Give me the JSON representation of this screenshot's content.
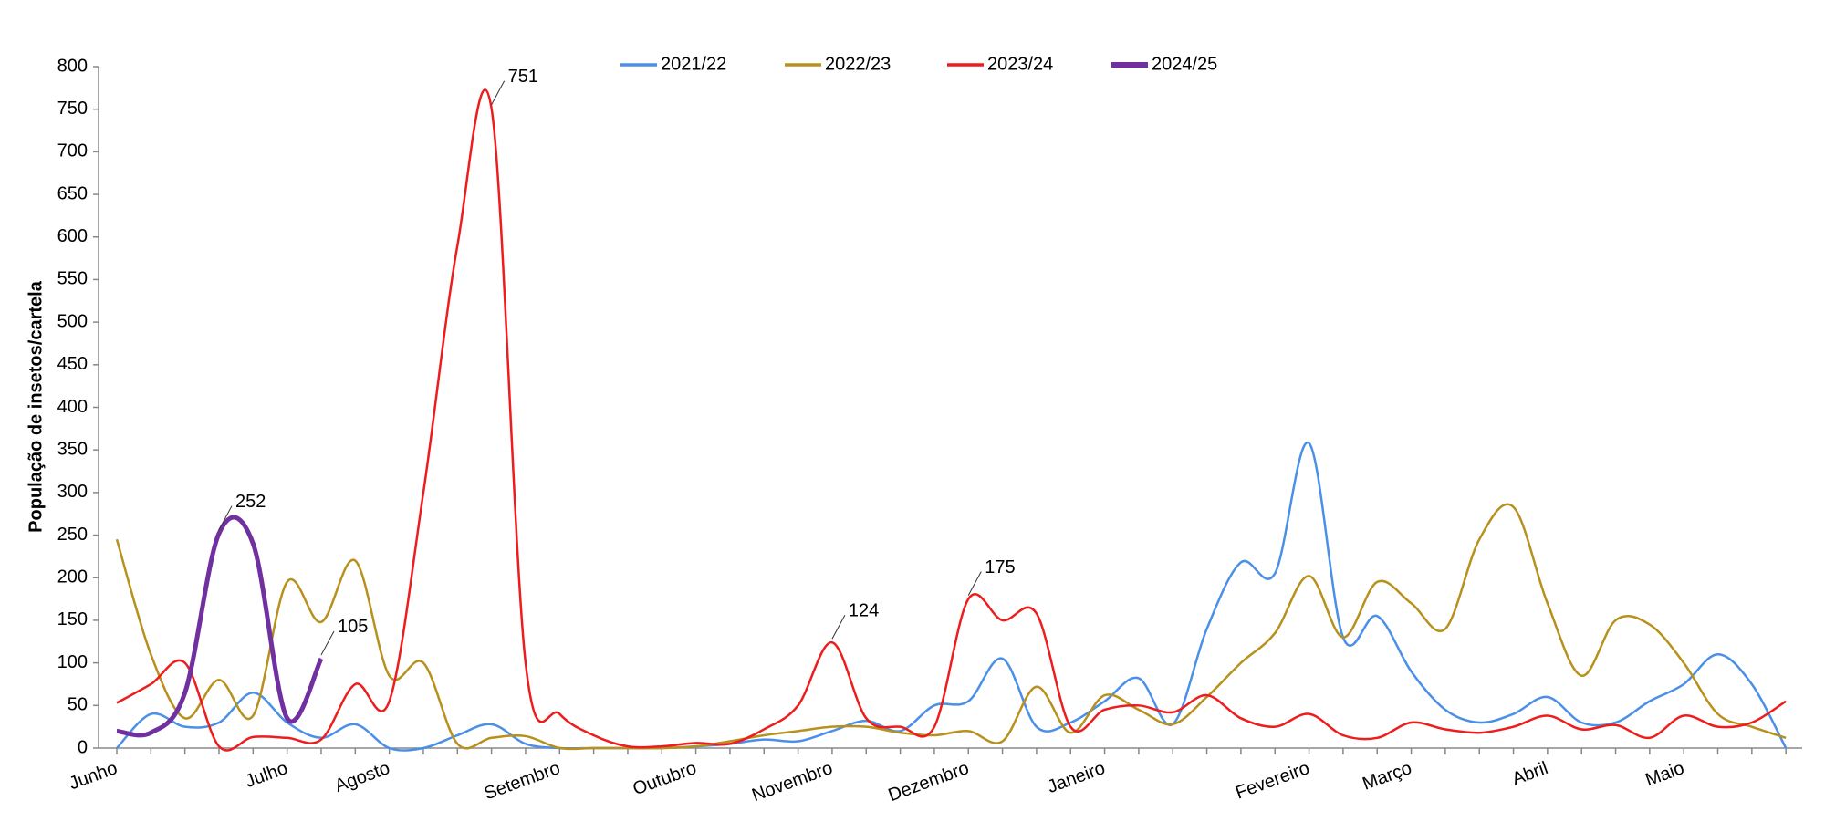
{
  "chart_data": {
    "type": "line",
    "y_label": "População de insetos/cartela",
    "categories": [
      "Junho",
      null,
      null,
      null,
      null,
      "Julho",
      null,
      null,
      "Agosto",
      null,
      null,
      null,
      null,
      "Setembro",
      null,
      null,
      null,
      "Outubro",
      null,
      null,
      null,
      "Novembro",
      null,
      null,
      null,
      "Dezembro",
      null,
      null,
      null,
      "Janeiro",
      null,
      null,
      null,
      null,
      null,
      "Fevereiro",
      null,
      null,
      "Março",
      null,
      null,
      null,
      "Abril",
      null,
      null,
      null,
      "Maio",
      null,
      null,
      null
    ],
    "series": [
      {
        "name": "2021/22",
        "color": "#4a8fe8",
        "width": 2.5,
        "values": [
          0,
          40,
          25,
          30,
          65,
          30,
          12,
          28,
          0,
          0,
          15,
          28,
          5,
          0,
          0,
          0,
          0,
          2,
          5,
          10,
          8,
          20,
          32,
          20,
          50,
          55,
          105,
          25,
          30,
          55,
          82,
          28,
          140,
          218,
          205,
          358,
          130,
          155,
          90,
          45,
          30,
          40,
          60,
          30,
          30,
          55,
          75,
          110,
          75,
          0
        ]
      },
      {
        "name": "2022/23",
        "color": "#b8901c",
        "width": 2.5,
        "values": [
          245,
          110,
          35,
          80,
          38,
          195,
          148,
          220,
          85,
          100,
          5,
          12,
          14,
          0,
          0,
          0,
          0,
          2,
          8,
          15,
          20,
          25,
          25,
          18,
          15,
          20,
          8,
          72,
          18,
          62,
          45,
          28,
          60,
          100,
          135,
          202,
          130,
          195,
          170,
          140,
          245,
          283,
          170,
          85,
          150,
          145,
          100,
          40,
          25,
          12
        ]
      },
      {
        "name": "2023/24",
        "color": "#ee1c1c",
        "width": 2.5,
        "labeled": [
          11,
          21,
          25
        ],
        "values": [
          53,
          75,
          100,
          2,
          13,
          12,
          10,
          75,
          55,
          300,
          590,
          751,
          100,
          40,
          15,
          2,
          2,
          6,
          5,
          22,
          50,
          124,
          35,
          25,
          25,
          175,
          150,
          158,
          25,
          45,
          50,
          42,
          62,
          35,
          25,
          40,
          15,
          12,
          30,
          22,
          18,
          25,
          38,
          22,
          27,
          12,
          38,
          25,
          30,
          55
        ]
      },
      {
        "name": "2024/25",
        "color": "#7030a0",
        "width": 5,
        "labeled": [
          3,
          6
        ],
        "values": [
          20,
          18,
          65,
          252,
          240,
          35,
          105,
          null,
          null,
          null,
          null,
          null,
          null,
          null,
          null,
          null,
          null,
          null,
          null,
          null,
          null,
          null,
          null,
          null,
          null,
          null,
          null,
          null,
          null,
          null,
          null,
          null,
          null,
          null,
          null,
          null,
          null,
          null,
          null,
          null,
          null,
          null,
          null,
          null,
          null,
          null,
          null,
          null,
          null,
          null
        ]
      }
    ],
    "ylim": [
      0,
      800
    ],
    "yticks": [
      0,
      50,
      100,
      150,
      200,
      250,
      300,
      350,
      400,
      450,
      500,
      550,
      600,
      650,
      700,
      750,
      800
    ],
    "legend": "top"
  }
}
